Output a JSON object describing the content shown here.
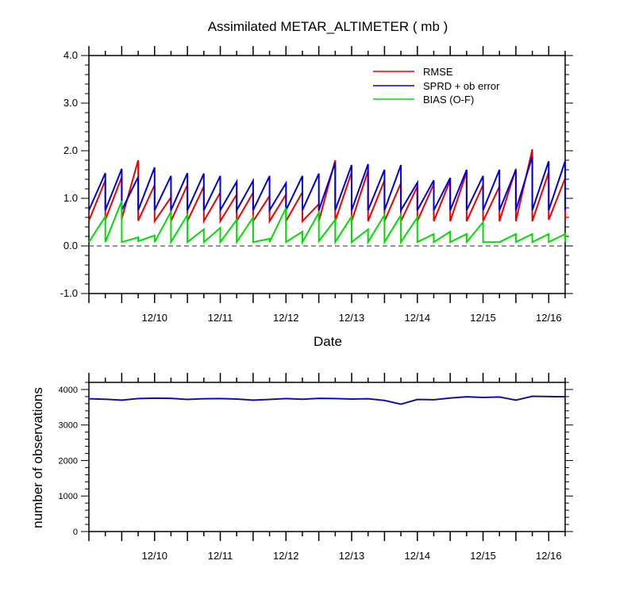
{
  "chart_data": [
    {
      "type": "line",
      "title": "Assimilated METAR_ALTIMETER ( mb )",
      "xlabel": "Date",
      "ylabel": "",
      "ylim": [
        -1.0,
        4.0
      ],
      "xlim": [
        9.0,
        16.25
      ],
      "yticks": [
        -1.0,
        0.0,
        1.0,
        2.0,
        3.0,
        4.0
      ],
      "ytick_labels": [
        "-1.0",
        "0.0",
        "1.0",
        "2.0",
        "3.0",
        "4.0"
      ],
      "xticks": [
        10,
        11,
        12,
        13,
        14,
        15,
        16
      ],
      "xtick_labels": [
        "12/10",
        "12/11",
        "12/12",
        "12/13",
        "12/14",
        "12/15",
        "12/16"
      ],
      "zero_line": true,
      "legend_position": "top-right",
      "colors": {
        "rmse": "#ee0000",
        "sprd": "#0000dd",
        "bias": "#00dd00",
        "zero": "#555555"
      },
      "x": [
        9.0,
        9.25,
        9.5,
        9.75,
        10.0,
        10.25,
        10.5,
        10.75,
        11.0,
        11.25,
        11.5,
        11.75,
        12.0,
        12.25,
        12.5,
        12.75,
        13.0,
        13.25,
        13.5,
        13.75,
        14.0,
        14.25,
        14.5,
        14.75,
        15.0,
        15.25,
        15.5,
        15.75,
        16.0,
        16.25
      ],
      "series": [
        {
          "name": "RMSE",
          "prior": [
            0.53,
            0.55,
            0.57,
            0.53,
            0.52,
            0.52,
            0.52,
            0.52,
            0.52,
            0.52,
            0.52,
            0.52,
            0.52,
            0.52,
            0.52,
            0.52,
            0.52,
            0.52,
            0.52,
            0.52,
            0.52,
            0.52,
            0.52,
            0.52,
            0.52,
            0.52,
            0.52,
            0.52,
            0.55,
            0.55
          ],
          "posterior": [
            1.38,
            1.45,
            1.8,
            1.28,
            1.02,
            1.28,
            1.25,
            1.12,
            1.08,
            1.12,
            1.05,
            1.08,
            1.13,
            0.88,
            1.8,
            1.55,
            1.58,
            1.38,
            1.32,
            1.25,
            1.3,
            1.38,
            1.55,
            1.28,
            1.25,
            1.62,
            2.03,
            1.55,
            1.42,
            1.45
          ]
        },
        {
          "name": "SPRD + ob error",
          "prior": [
            0.75,
            0.75,
            0.75,
            0.75,
            0.75,
            0.75,
            0.75,
            0.75,
            0.75,
            0.75,
            0.75,
            0.75,
            0.75,
            0.75,
            0.75,
            0.75,
            0.75,
            0.75,
            0.75,
            0.75,
            0.75,
            0.75,
            0.75,
            0.75,
            0.75,
            0.75,
            0.75,
            0.75,
            0.75,
            0.75
          ],
          "posterior": [
            1.53,
            1.62,
            1.45,
            1.65,
            1.47,
            1.53,
            1.52,
            1.47,
            1.35,
            1.37,
            1.47,
            1.32,
            1.47,
            1.52,
            1.75,
            1.7,
            1.72,
            1.6,
            1.7,
            1.33,
            1.38,
            1.43,
            1.6,
            1.47,
            1.6,
            1.6,
            1.88,
            1.78,
            1.78,
            1.78
          ]
        },
        {
          "name": "BIAS (O-F)",
          "prior": [
            0.08,
            0.08,
            0.08,
            0.1,
            0.08,
            0.08,
            0.08,
            0.08,
            0.08,
            0.08,
            0.08,
            0.08,
            0.08,
            0.08,
            0.1,
            0.08,
            0.08,
            0.08,
            0.08,
            0.08,
            0.08,
            0.08,
            0.08,
            0.08,
            0.08,
            0.08,
            0.08,
            0.08,
            0.08,
            0.08
          ],
          "posterior": [
            0.62,
            0.95,
            0.18,
            0.22,
            0.72,
            0.65,
            0.35,
            0.38,
            0.55,
            0.6,
            0.15,
            0.8,
            0.3,
            0.7,
            0.55,
            0.62,
            0.35,
            0.65,
            0.65,
            0.6,
            0.25,
            0.3,
            0.25,
            0.5,
            0.08,
            0.25,
            0.25,
            0.25,
            0.25,
            0.25
          ]
        }
      ]
    },
    {
      "type": "line",
      "title": "",
      "xlabel": "",
      "ylabel": "number of observations",
      "ylim": [
        0,
        4200
      ],
      "xlim": [
        9.0,
        16.25
      ],
      "yticks": [
        0,
        1000,
        2000,
        3000,
        4000
      ],
      "ytick_labels": [
        "0",
        "1000",
        "2000",
        "3000",
        "4000"
      ],
      "xticks": [
        10,
        11,
        12,
        13,
        14,
        15,
        16
      ],
      "xtick_labels": [
        "12/10",
        "12/11",
        "12/12",
        "12/13",
        "12/14",
        "12/15",
        "12/16"
      ],
      "colors": {
        "total": "#0000dd",
        "assimilated": "#333333"
      },
      "x": [
        9.0,
        9.25,
        9.5,
        9.75,
        10.0,
        10.25,
        10.5,
        10.75,
        11.0,
        11.25,
        11.5,
        11.75,
        12.0,
        12.25,
        12.5,
        12.75,
        13.0,
        13.25,
        13.5,
        13.75,
        14.0,
        14.25,
        14.5,
        14.75,
        15.0,
        15.25,
        15.5,
        15.75,
        16.0,
        16.25
      ],
      "values": [
        3740,
        3725,
        3700,
        3745,
        3755,
        3750,
        3720,
        3740,
        3745,
        3730,
        3700,
        3720,
        3745,
        3725,
        3750,
        3745,
        3730,
        3740,
        3690,
        3585,
        3720,
        3710,
        3760,
        3795,
        3775,
        3790,
        3700,
        3810,
        3800,
        3795
      ]
    }
  ]
}
